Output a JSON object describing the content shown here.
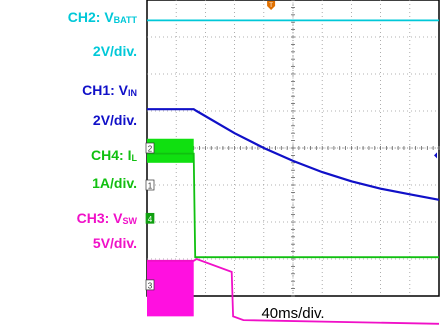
{
  "channels": [
    {
      "id": "ch2",
      "name": "CH2: V",
      "sub": "BATT",
      "scale": "2V/div.",
      "color": "#00c8d8"
    },
    {
      "id": "ch1",
      "name": "CH1: V",
      "sub": "IN",
      "scale": "2V/div.",
      "color": "#1010c8"
    },
    {
      "id": "ch4",
      "name": "CH4: I",
      "sub": "L",
      "scale": "1A/div.",
      "color": "#10c010"
    },
    {
      "id": "ch3",
      "name": "CH3: V",
      "sub": "SW",
      "scale": "5V/div.",
      "color": "#f010c8"
    }
  ],
  "markers": {
    "ch2": "2",
    "ch1": "1",
    "ch4": "4",
    "ch3": "3",
    "trigger": "T"
  },
  "time_scale": "40ms/div.",
  "chart_data": {
    "type": "line",
    "grid": true,
    "x_divisions": 10,
    "y_divisions": 8,
    "xlabel": "40ms/div.",
    "series": [
      {
        "name": "CH2: VBATT",
        "color": "#00c8d8",
        "points": [
          [
            0,
            0.55
          ],
          [
            10,
            0.55
          ]
        ]
      },
      {
        "name": "CH1: VIN",
        "color": "#1010c8",
        "points": [
          [
            0,
            2.95
          ],
          [
            1.6,
            2.95
          ],
          [
            1.7,
            3.0
          ],
          [
            3,
            3.6
          ],
          [
            4,
            4.0
          ],
          [
            5,
            4.35
          ],
          [
            6,
            4.65
          ],
          [
            7,
            4.9
          ],
          [
            8,
            5.1
          ],
          [
            9,
            5.25
          ],
          [
            10,
            5.4
          ]
        ]
      },
      {
        "name": "CH4: IL",
        "color": "#10c010",
        "points": [
          [
            0,
            4.15
          ],
          [
            1.6,
            4.15
          ],
          [
            1.65,
            6.95
          ],
          [
            10,
            6.95
          ]
        ]
      },
      {
        "name": "CH3: VSW",
        "color": "#f010c8",
        "points": [
          [
            0,
            7.05
          ],
          [
            1.6,
            7.05
          ],
          [
            1.7,
            7.0
          ],
          [
            2.9,
            7.35
          ],
          [
            2.95,
            8.55
          ],
          [
            3.3,
            8.65
          ],
          [
            10,
            8.75
          ]
        ]
      }
    ]
  }
}
